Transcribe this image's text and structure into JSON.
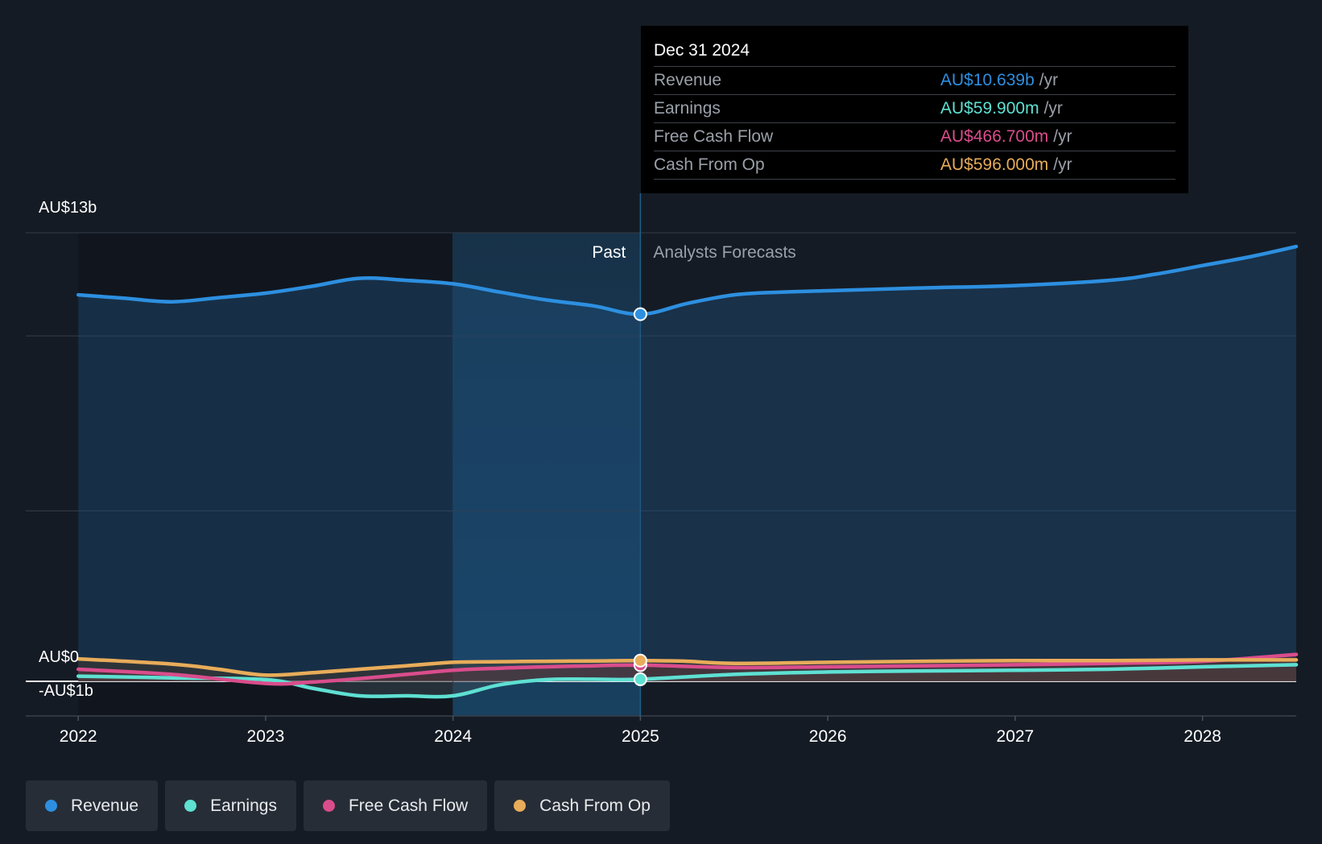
{
  "colors": {
    "revenue": "#2d8fe0",
    "earnings": "#5ee0d2",
    "fcf": "#d94d8c",
    "cfo": "#e8ac5a",
    "background": "#151b24"
  },
  "tooltip": {
    "date": "Dec 31 2024",
    "rows": [
      {
        "label": "Revenue",
        "value": "AU$10.639b",
        "unit": "/yr"
      },
      {
        "label": "Earnings",
        "value": "AU$59.900m",
        "unit": "/yr"
      },
      {
        "label": "Free Cash Flow",
        "value": "AU$466.700m",
        "unit": "/yr"
      },
      {
        "label": "Cash From Op",
        "value": "AU$596.000m",
        "unit": "/yr"
      }
    ]
  },
  "legend": [
    {
      "label": "Revenue",
      "icon": "revenue-dot-icon"
    },
    {
      "label": "Earnings",
      "icon": "earnings-dot-icon"
    },
    {
      "label": "Free Cash Flow",
      "icon": "fcf-dot-icon"
    },
    {
      "label": "Cash From Op",
      "icon": "cfo-dot-icon"
    }
  ],
  "chart_data": {
    "type": "line",
    "title": "",
    "xlabel": "",
    "ylabel": "",
    "ylim": [
      -1,
      13
    ],
    "y_labels": [
      "AU$13b",
      "AU$0",
      "-AU$1b"
    ],
    "x_ticks": [
      2022,
      2023,
      2024,
      2025,
      2026,
      2027,
      2028
    ],
    "xlim": [
      2021.72,
      2028.5
    ],
    "past_label": "Past",
    "forecast_label": "Analysts Forecasts",
    "highlight_x": 2025.0,
    "past_shade_start": 2024.0,
    "grid": true,
    "legend_position": "bottom-left",
    "series": [
      {
        "name": "Revenue",
        "key": "revenue",
        "x": [
          2022.0,
          2022.25,
          2022.5,
          2022.75,
          2023.0,
          2023.25,
          2023.5,
          2023.75,
          2024.0,
          2024.25,
          2024.5,
          2024.75,
          2025.0,
          2025.25,
          2025.5,
          2025.75,
          2026.0,
          2026.5,
          2027.0,
          2027.5,
          2027.75,
          2028.0,
          2028.25,
          2028.5
        ],
        "y": [
          11.2,
          11.1,
          11.0,
          11.12,
          11.25,
          11.45,
          11.68,
          11.62,
          11.52,
          11.28,
          11.05,
          10.88,
          10.64,
          10.95,
          11.2,
          11.28,
          11.32,
          11.4,
          11.47,
          11.62,
          11.8,
          12.05,
          12.3,
          12.6
        ]
      },
      {
        "name": "Earnings",
        "key": "earnings",
        "x": [
          2022.0,
          2022.5,
          2023.0,
          2023.25,
          2023.5,
          2023.75,
          2024.0,
          2024.25,
          2024.5,
          2024.75,
          2025.0,
          2025.5,
          2026.0,
          2026.5,
          2027.0,
          2027.5,
          2028.0,
          2028.5
        ],
        "y": [
          0.15,
          0.1,
          0.05,
          -0.2,
          -0.42,
          -0.42,
          -0.42,
          -0.1,
          0.05,
          0.06,
          0.06,
          0.2,
          0.27,
          0.3,
          0.32,
          0.35,
          0.42,
          0.48
        ]
      },
      {
        "name": "Free Cash Flow",
        "key": "fcf",
        "x": [
          2022.0,
          2022.5,
          2023.0,
          2023.25,
          2023.5,
          2023.75,
          2024.0,
          2024.25,
          2024.5,
          2024.75,
          2025.0,
          2025.5,
          2026.0,
          2026.5,
          2027.0,
          2027.5,
          2028.0,
          2028.5
        ],
        "y": [
          0.35,
          0.2,
          -0.06,
          -0.02,
          0.08,
          0.2,
          0.32,
          0.38,
          0.42,
          0.45,
          0.47,
          0.4,
          0.42,
          0.45,
          0.48,
          0.52,
          0.58,
          0.78
        ]
      },
      {
        "name": "Cash From Op",
        "key": "cfo",
        "x": [
          2022.0,
          2022.5,
          2022.75,
          2023.0,
          2023.25,
          2023.5,
          2023.75,
          2024.0,
          2024.25,
          2024.5,
          2024.75,
          2025.0,
          2025.25,
          2025.5,
          2026.0,
          2026.5,
          2027.0,
          2027.5,
          2028.0,
          2028.5
        ],
        "y": [
          0.65,
          0.5,
          0.35,
          0.18,
          0.25,
          0.35,
          0.45,
          0.55,
          0.57,
          0.58,
          0.59,
          0.6,
          0.58,
          0.52,
          0.55,
          0.58,
          0.6,
          0.6,
          0.62,
          0.62
        ]
      }
    ]
  }
}
